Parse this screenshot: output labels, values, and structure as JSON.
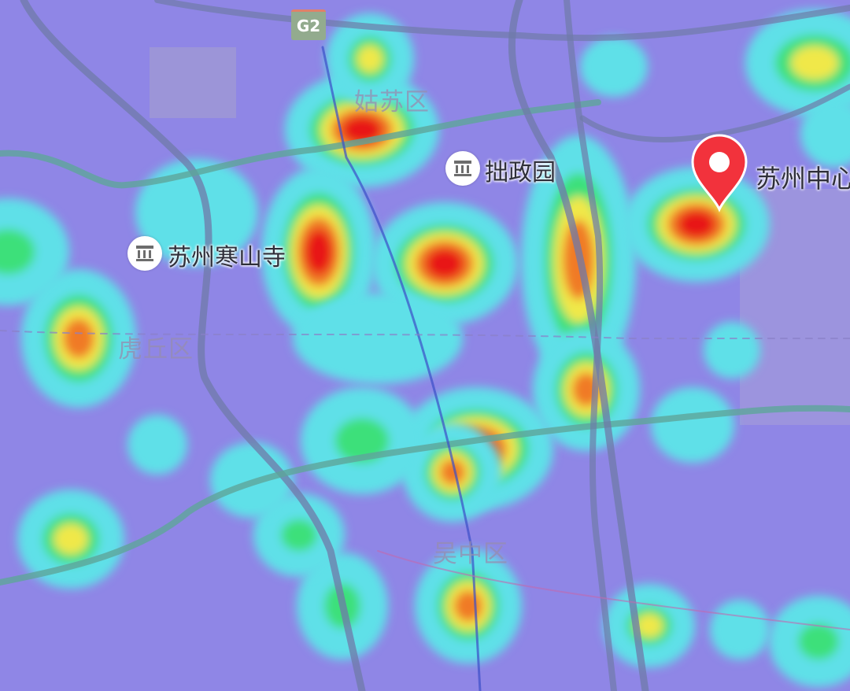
{
  "map": {
    "type": "heatmap",
    "colors": {
      "base": "#8f86e6",
      "low": "#5fe0e8",
      "mid": "#3ee07a",
      "high": "#f0e84a",
      "higher": "#f07a28",
      "peak": "#e81818",
      "marker": "#f2323c"
    },
    "highway_shield": "G2",
    "districts": [
      "姑苏区",
      "虎丘区",
      "吴中区"
    ],
    "pois": [
      {
        "name": "拙政园",
        "icon": "museum-icon"
      },
      {
        "name": "苏州寒山寺",
        "icon": "museum-icon"
      }
    ],
    "marker": {
      "name": "苏州中心",
      "icon": "map-pin-icon"
    }
  }
}
